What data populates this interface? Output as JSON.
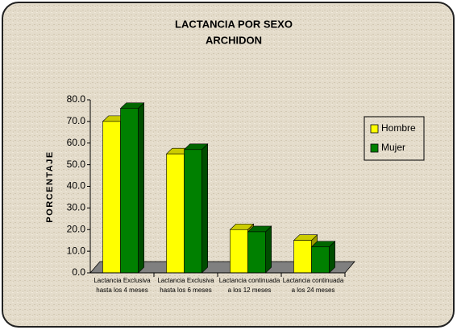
{
  "chart_data": {
    "type": "bar",
    "title": "LACTANCIA POR SEXO",
    "subtitle": "ARCHIDON",
    "y_label": "PORCENTAJE",
    "categories": [
      "Lactancia Exclusiva hasta los 4 meses",
      "Lactancia Exclusiva hasta los 6 meses",
      "Lactancia continuada a los 12 meses",
      "Lactancia continuada a los 24 meses"
    ],
    "series": [
      {
        "name": "Hombre",
        "color": "#ffff00",
        "values": [
          70,
          55,
          20,
          15
        ]
      },
      {
        "name": "Mujer",
        "color": "#008000",
        "values": [
          76,
          57,
          19,
          12
        ]
      }
    ],
    "ylim": [
      0,
      80
    ],
    "yticks": [
      {
        "value": 0,
        "label": "0.0"
      },
      {
        "value": 10,
        "label": "10.0"
      },
      {
        "value": 20,
        "label": "20.0"
      },
      {
        "value": 30,
        "label": "30.0"
      },
      {
        "value": 40,
        "label": "40.0"
      },
      {
        "value": 50,
        "label": "50.0"
      },
      {
        "value": 60,
        "label": "60.0"
      },
      {
        "value": 70,
        "label": "70.0"
      },
      {
        "value": 80,
        "label": "80.0"
      }
    ],
    "legend": "right"
  }
}
